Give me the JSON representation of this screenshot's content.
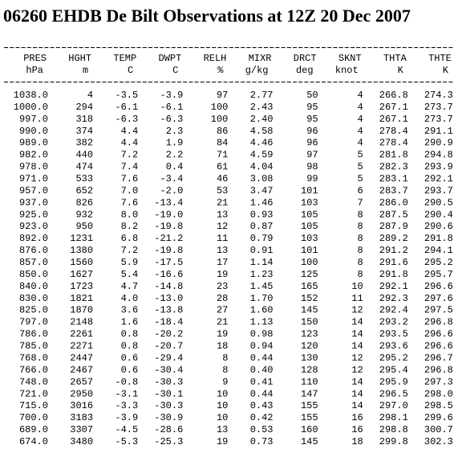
{
  "title": "06260 EHDB De Bilt Observations at 12Z 20 Dec 2007",
  "table": {
    "columns": [
      {
        "name": "PRES",
        "unit": "hPa"
      },
      {
        "name": "HGHT",
        "unit": "m"
      },
      {
        "name": "TEMP",
        "unit": "C"
      },
      {
        "name": "DWPT",
        "unit": "C"
      },
      {
        "name": "RELH",
        "unit": "%"
      },
      {
        "name": "MIXR",
        "unit": "g/kg"
      },
      {
        "name": "DRCT",
        "unit": "deg"
      },
      {
        "name": "SKNT",
        "unit": "knot"
      },
      {
        "name": "THTA",
        "unit": "K"
      },
      {
        "name": "THTE",
        "unit": "K"
      }
    ],
    "rows": [
      [
        "1038.0",
        "4",
        "-3.5",
        "-3.9",
        "97",
        "2.77",
        "50",
        "4",
        "266.8",
        "274.3"
      ],
      [
        "1000.0",
        "294",
        "-6.1",
        "-6.1",
        "100",
        "2.43",
        "95",
        "4",
        "267.1",
        "273.7"
      ],
      [
        "997.0",
        "318",
        "-6.3",
        "-6.3",
        "100",
        "2.40",
        "95",
        "4",
        "267.1",
        "273.7"
      ],
      [
        "990.0",
        "374",
        "4.4",
        "2.3",
        "86",
        "4.58",
        "96",
        "4",
        "278.4",
        "291.1"
      ],
      [
        "989.0",
        "382",
        "4.4",
        "1.9",
        "84",
        "4.46",
        "96",
        "4",
        "278.4",
        "290.9"
      ],
      [
        "982.0",
        "440",
        "7.2",
        "2.2",
        "71",
        "4.59",
        "97",
        "5",
        "281.8",
        "294.8"
      ],
      [
        "978.0",
        "474",
        "7.4",
        "0.4",
        "61",
        "4.04",
        "98",
        "5",
        "282.3",
        "293.9"
      ],
      [
        "971.0",
        "533",
        "7.6",
        "-3.4",
        "46",
        "3.08",
        "99",
        "5",
        "283.1",
        "292.1"
      ],
      [
        "957.0",
        "652",
        "7.0",
        "-2.0",
        "53",
        "3.47",
        "101",
        "6",
        "283.7",
        "293.7"
      ],
      [
        "937.0",
        "826",
        "7.6",
        "-13.4",
        "21",
        "1.46",
        "103",
        "7",
        "286.0",
        "290.5"
      ],
      [
        "925.0",
        "932",
        "8.0",
        "-19.0",
        "13",
        "0.93",
        "105",
        "8",
        "287.5",
        "290.4"
      ],
      [
        "923.0",
        "950",
        "8.2",
        "-19.8",
        "12",
        "0.87",
        "105",
        "8",
        "287.9",
        "290.6"
      ],
      [
        "892.0",
        "1231",
        "6.8",
        "-21.2",
        "11",
        "0.79",
        "103",
        "8",
        "289.2",
        "291.8"
      ],
      [
        "876.0",
        "1380",
        "7.2",
        "-19.8",
        "13",
        "0.91",
        "101",
        "8",
        "291.2",
        "294.1"
      ],
      [
        "857.0",
        "1560",
        "5.9",
        "-17.5",
        "17",
        "1.14",
        "100",
        "8",
        "291.6",
        "295.2"
      ],
      [
        "850.0",
        "1627",
        "5.4",
        "-16.6",
        "19",
        "1.23",
        "125",
        "8",
        "291.8",
        "295.7"
      ],
      [
        "840.0",
        "1723",
        "4.7",
        "-14.8",
        "23",
        "1.45",
        "165",
        "10",
        "292.1",
        "296.6"
      ],
      [
        "830.0",
        "1821",
        "4.0",
        "-13.0",
        "28",
        "1.70",
        "152",
        "11",
        "292.3",
        "297.6"
      ],
      [
        "825.0",
        "1870",
        "3.6",
        "-13.8",
        "27",
        "1.60",
        "145",
        "12",
        "292.4",
        "297.5"
      ],
      [
        "797.0",
        "2148",
        "1.6",
        "-18.4",
        "21",
        "1.13",
        "150",
        "14",
        "293.2",
        "296.8"
      ],
      [
        "786.0",
        "2261",
        "0.8",
        "-20.2",
        "19",
        "0.98",
        "123",
        "14",
        "293.5",
        "296.6"
      ],
      [
        "785.0",
        "2271",
        "0.8",
        "-20.7",
        "18",
        "0.94",
        "120",
        "14",
        "293.6",
        "296.6"
      ],
      [
        "768.0",
        "2447",
        "0.6",
        "-29.4",
        "8",
        "0.44",
        "130",
        "12",
        "295.2",
        "296.7"
      ],
      [
        "766.0",
        "2467",
        "0.6",
        "-30.4",
        "8",
        "0.40",
        "128",
        "12",
        "295.4",
        "296.8"
      ],
      [
        "748.0",
        "2657",
        "-0.8",
        "-30.3",
        "9",
        "0.41",
        "110",
        "14",
        "295.9",
        "297.3"
      ],
      [
        "721.0",
        "2950",
        "-3.1",
        "-30.1",
        "10",
        "0.44",
        "147",
        "14",
        "296.5",
        "298.0"
      ],
      [
        "715.0",
        "3016",
        "-3.3",
        "-30.3",
        "10",
        "0.43",
        "155",
        "14",
        "297.0",
        "298.5"
      ],
      [
        "700.0",
        "3183",
        "-3.9",
        "-30.9",
        "10",
        "0.42",
        "155",
        "16",
        "298.1",
        "299.6"
      ],
      [
        "689.0",
        "3307",
        "-4.5",
        "-28.6",
        "13",
        "0.53",
        "160",
        "16",
        "298.8",
        "300.7"
      ],
      [
        "674.0",
        "3480",
        "-5.3",
        "-25.3",
        "19",
        "0.73",
        "145",
        "18",
        "299.8",
        "302.3"
      ]
    ]
  }
}
